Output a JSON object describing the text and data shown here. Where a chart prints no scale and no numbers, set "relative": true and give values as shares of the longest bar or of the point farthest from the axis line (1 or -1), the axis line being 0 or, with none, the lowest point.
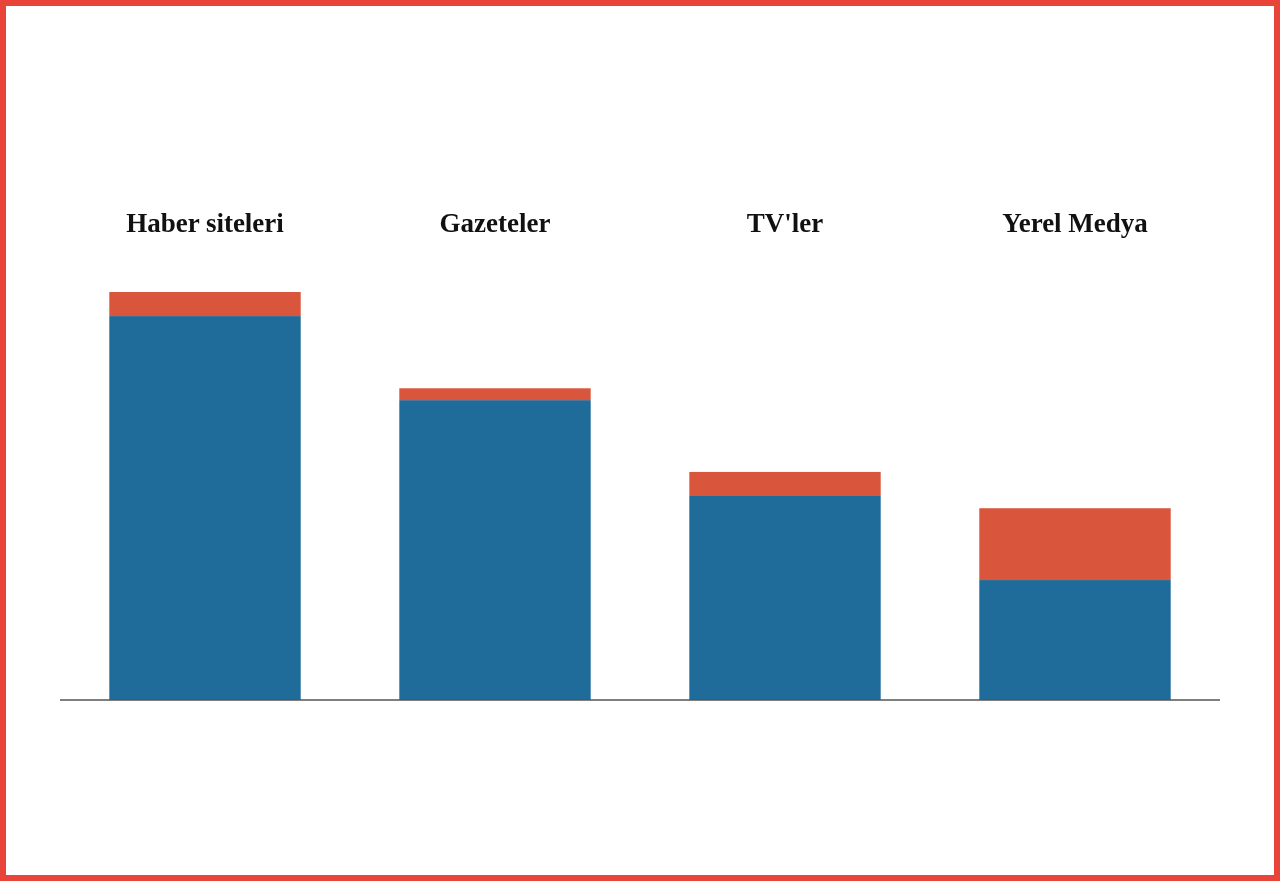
{
  "chart_data": {
    "type": "bar",
    "categories": [
      "Haber siteleri",
      "Gazeteler",
      "TV'ler",
      "Yerel Medya"
    ],
    "stacked": true,
    "relative": true,
    "series": [
      {
        "color": "#1f6b9a",
        "values": [
          0.941,
          0.735,
          0.5,
          0.294
        ]
      },
      {
        "color": "#d9553b",
        "values": [
          0.059,
          0.029,
          0.059,
          0.176
        ]
      }
    ]
  }
}
